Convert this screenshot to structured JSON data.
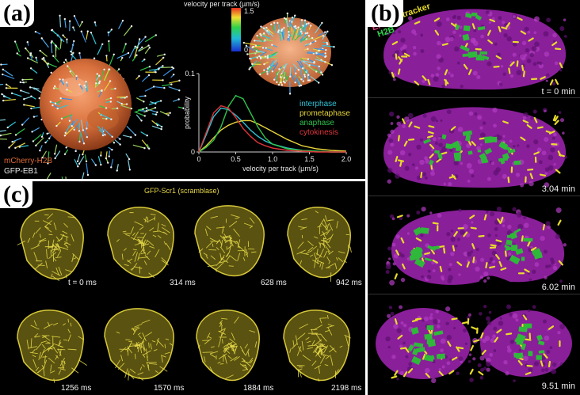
{
  "panel_a": {
    "label": "(a)",
    "legend_h2b": "mCherry-H2B",
    "legend_eb1": "GFP-EB1",
    "colorbar": {
      "title": "velocity per track (µm/s)",
      "max_label": "1.5",
      "min_label": "0"
    },
    "chart_data": {
      "type": "line",
      "xlabel": "velocity per track (µm/s)",
      "ylabel": "probability",
      "xlim": [
        0,
        2.0
      ],
      "ylim": [
        0,
        0.1
      ],
      "x_ticks": [
        "0",
        "0.5",
        "1.0",
        "1.5",
        "2.0"
      ],
      "y_ticks": [
        "0",
        "0.1"
      ],
      "x": [
        0,
        0.1,
        0.2,
        0.3,
        0.4,
        0.5,
        0.6,
        0.7,
        0.8,
        0.9,
        1.0,
        1.2,
        1.4,
        1.6,
        1.8,
        2.0
      ],
      "series": [
        {
          "name": "interphase",
          "color": "#2ec4d6",
          "values": [
            0.0,
            0.022,
            0.045,
            0.056,
            0.054,
            0.047,
            0.038,
            0.028,
            0.02,
            0.014,
            0.01,
            0.005,
            0.002,
            0.001,
            0.0,
            0.0
          ]
        },
        {
          "name": "prometaphase",
          "color": "#e6d33a",
          "values": [
            0.0,
            0.008,
            0.018,
            0.028,
            0.034,
            0.038,
            0.04,
            0.04,
            0.036,
            0.031,
            0.026,
            0.016,
            0.008,
            0.004,
            0.002,
            0.001
          ]
        },
        {
          "name": "anaphase",
          "color": "#2ec24a",
          "values": [
            0.0,
            0.006,
            0.015,
            0.032,
            0.058,
            0.072,
            0.068,
            0.05,
            0.032,
            0.018,
            0.01,
            0.004,
            0.002,
            0.001,
            0.0,
            0.0
          ]
        },
        {
          "name": "cytokinesis",
          "color": "#e0343a",
          "values": [
            0.0,
            0.025,
            0.05,
            0.059,
            0.056,
            0.044,
            0.03,
            0.02,
            0.012,
            0.008,
            0.005,
            0.002,
            0.001,
            0.0,
            0.0,
            0.0
          ]
        }
      ]
    }
  },
  "panel_b": {
    "label": "(b)",
    "legend": [
      {
        "text": "ER",
        "color": "#e0447a"
      },
      {
        "text": "mitotracker",
        "color": "#e8dc2a"
      },
      {
        "text": "H2B",
        "color": "#2fd54a"
      }
    ],
    "timepoints": [
      "t = 0 min",
      "3.04 min",
      "6.02 min",
      "9.51 min"
    ]
  },
  "panel_c": {
    "label": "(c)",
    "title": "GFP-Scr1 (scramblase)",
    "timepoints": [
      "t = 0 ms",
      "314 ms",
      "628 ms",
      "942 ms",
      "1256 ms",
      "1570 ms",
      "1884 ms",
      "2198 ms"
    ]
  }
}
